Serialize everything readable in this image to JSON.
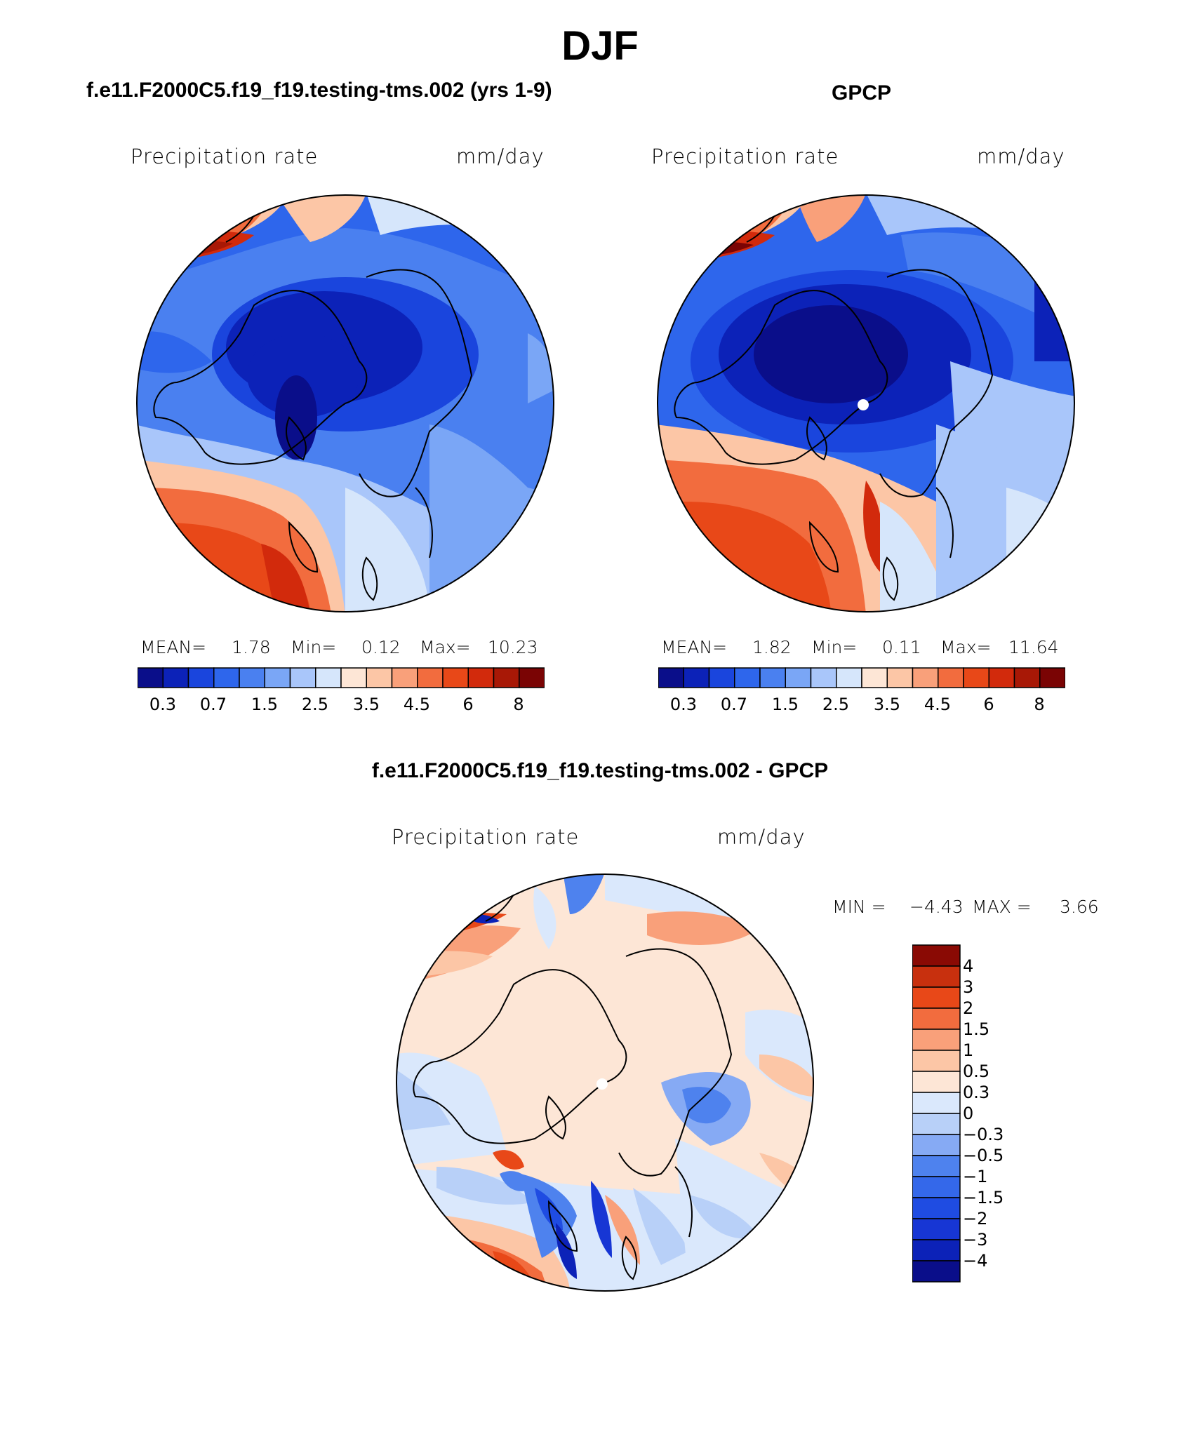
{
  "season": "DJF",
  "colors": {
    "seq_palette": [
      "#0a0e8a",
      "#0c22b8",
      "#1a45dd",
      "#2e66ec",
      "#4a80f0",
      "#7aa6f6",
      "#a9c6fa",
      "#d6e6fb",
      "#fde6d6",
      "#fcc6a6",
      "#f9a07a",
      "#f26c3e",
      "#e84818",
      "#d22a0c",
      "#a81806",
      "#7a0404"
    ],
    "diff_palette": [
      "#0a0e8a",
      "#0c22b8",
      "#1736d4",
      "#1f4ce2",
      "#3468ea",
      "#4e82ee",
      "#86aaf4",
      "#b8d0f8",
      "#dae8fc",
      "#fde6d6",
      "#fcc6a6",
      "#f9a07a",
      "#f26c3e",
      "#e84818",
      "#c8300e",
      "#8a0a04"
    ]
  },
  "panels": [
    {
      "id": "model",
      "title": "f.e11.F2000C5.f19_f19.testing-tms.002 (yrs 1-9)",
      "var_label": "Precipitation rate",
      "units": "mm/day",
      "stats": {
        "mean_label": "MEAN=",
        "mean": "1.78",
        "min_label": "Min=",
        "min": "0.12",
        "max_label": "Max=",
        "max": "10.23"
      },
      "colorbar_ticks": [
        "0.3",
        "0.7",
        "1.5",
        "2.5",
        "3.5",
        "4.5",
        "6",
        "8"
      ]
    },
    {
      "id": "obs",
      "title": "GPCP",
      "var_label": "Precipitation rate",
      "units": "mm/day",
      "stats": {
        "mean_label": "MEAN=",
        "mean": "1.82",
        "min_label": "Min=",
        "min": "0.11",
        "max_label": "Max=",
        "max": "11.64"
      },
      "colorbar_ticks": [
        "0.3",
        "0.7",
        "1.5",
        "2.5",
        "3.5",
        "4.5",
        "6",
        "8"
      ]
    },
    {
      "id": "diff",
      "title": "f.e11.F2000C5.f19_f19.testing-tms.002 - GPCP",
      "var_label": "Precipitation rate",
      "units": "mm/day",
      "stats": {
        "min_label": "MIN =",
        "min": "−4.43",
        "max_label": "MAX =",
        "max": "3.66"
      },
      "colorbar_ticks": [
        "4",
        "3",
        "2",
        "1.5",
        "1",
        "0.5",
        "0.3",
        "0",
        "−0.3",
        "−0.5",
        "−1",
        "−1.5",
        "−2",
        "−3",
        "−4"
      ]
    }
  ]
}
